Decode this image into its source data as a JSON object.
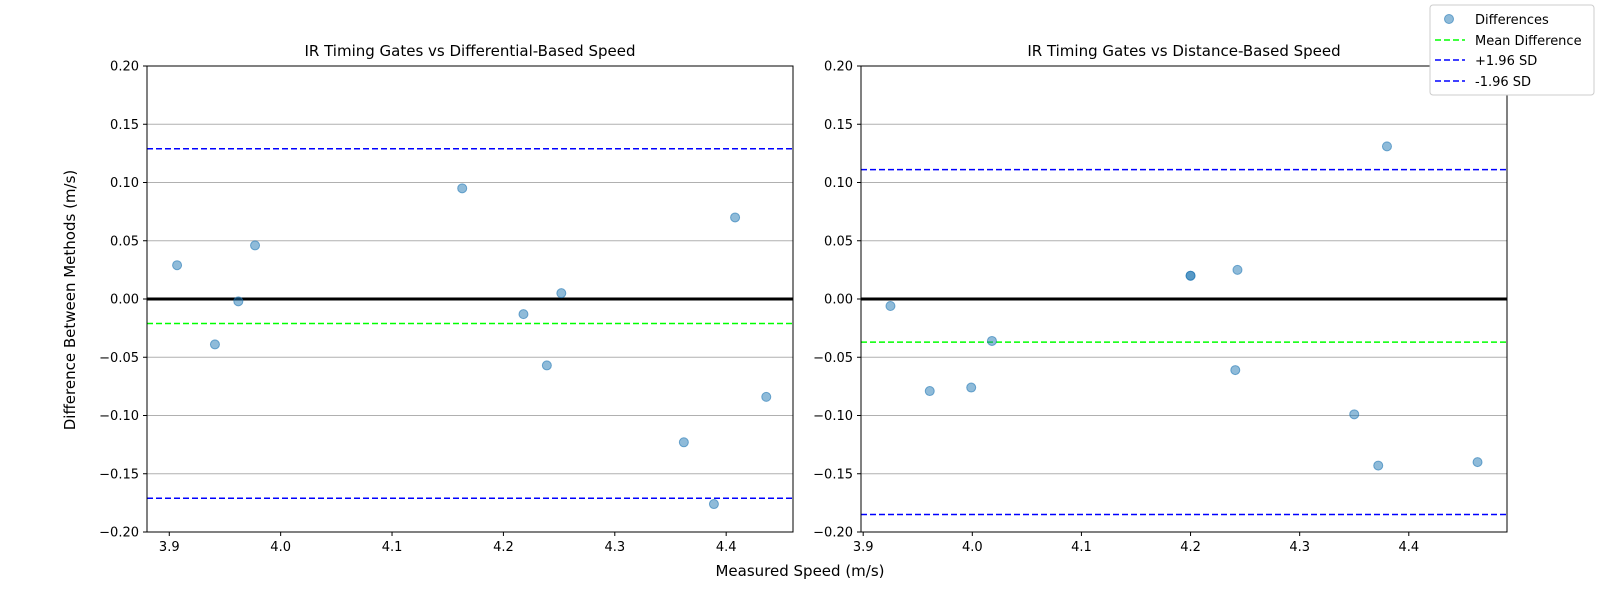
{
  "figure": {
    "xlabel": "Measured Speed (m/s)",
    "ylabel": "Difference Between Methods (m/s)"
  },
  "legend": {
    "placement": "top-right",
    "entries": [
      {
        "label": "Differences",
        "kind": "marker",
        "color": "#1f77b4"
      },
      {
        "label": "Mean Difference",
        "kind": "dashed-line",
        "color": "#00ff00"
      },
      {
        "label": "+1.96 SD",
        "kind": "dashed-line",
        "color": "#0000ff"
      },
      {
        "label": "-1.96 SD",
        "kind": "dashed-line",
        "color": "#0000ff"
      }
    ]
  },
  "chart_data": [
    {
      "type": "scatter",
      "title": "IR Timing Gates vs Differential-Based Speed",
      "xlim": [
        3.88,
        4.46
      ],
      "ylim": [
        -0.2,
        0.2
      ],
      "xticks": [
        "3.9",
        "4.0",
        "4.1",
        "4.2",
        "4.3",
        "4.4"
      ],
      "yticks": [
        "0.20",
        "0.15",
        "0.10",
        "0.05",
        "0.00",
        "−0.05",
        "−0.10",
        "−0.15",
        "−0.20"
      ],
      "grid": "horizontal",
      "zero_line": 0.0,
      "mean_difference": -0.021,
      "upper_loa": 0.129,
      "lower_loa": -0.171,
      "series": [
        {
          "name": "Differences",
          "x": [
            3.907,
            3.941,
            3.962,
            3.977,
            4.163,
            4.218,
            4.239,
            4.252,
            4.362,
            4.389,
            4.408,
            4.436
          ],
          "y": [
            0.029,
            -0.039,
            -0.002,
            0.046,
            0.095,
            -0.013,
            -0.057,
            0.005,
            -0.123,
            -0.176,
            0.07,
            -0.084
          ]
        }
      ]
    },
    {
      "type": "scatter",
      "title": "IR Timing Gates vs Distance-Based Speed",
      "xlim": [
        3.898,
        4.49
      ],
      "ylim": [
        -0.2,
        0.2
      ],
      "xticks": [
        "3.9",
        "4.0",
        "4.1",
        "4.2",
        "4.3",
        "4.4"
      ],
      "yticks": [
        "0.20",
        "0.15",
        "0.10",
        "0.05",
        "0.00",
        "−0.05",
        "−0.10",
        "−0.15",
        "−0.20"
      ],
      "grid": "horizontal",
      "zero_line": 0.0,
      "mean_difference": -0.037,
      "upper_loa": 0.111,
      "lower_loa": -0.185,
      "series": [
        {
          "name": "Differences",
          "x": [
            3.925,
            3.961,
            3.999,
            4.018,
            4.2,
            4.2,
            4.241,
            4.243,
            4.35,
            4.372,
            4.38,
            4.463
          ],
          "y": [
            -0.006,
            -0.079,
            -0.076,
            -0.036,
            0.02,
            0.02,
            -0.061,
            0.025,
            -0.099,
            -0.143,
            0.131,
            -0.14
          ]
        }
      ]
    }
  ]
}
